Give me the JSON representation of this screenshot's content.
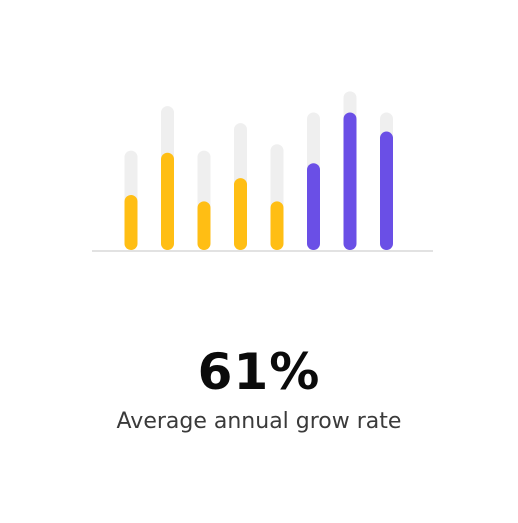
{
  "chart_data": {
    "type": "bar",
    "categories": [
      "",
      "",
      "",
      "",
      "",
      "",
      "",
      ""
    ],
    "values": [
      26,
      46,
      23,
      34,
      23,
      41,
      65,
      56
    ],
    "totals": [
      47,
      68,
      47,
      60,
      50,
      65,
      75,
      65
    ],
    "ylim": [
      0,
      78
    ],
    "grid": false,
    "colors": [
      "#FFBE14",
      "#FFBE14",
      "#FFBE14",
      "#FFBE14",
      "#FFBE14",
      "#6A4FE6",
      "#6A4FE6",
      "#6A4FE6"
    ],
    "track_color": "#EFEFEF",
    "baseline_color": "#E2E2E2",
    "title": "",
    "xlabel": "",
    "ylabel": ""
  },
  "stat": {
    "value": "61%",
    "label": "Average annual grow rate"
  }
}
